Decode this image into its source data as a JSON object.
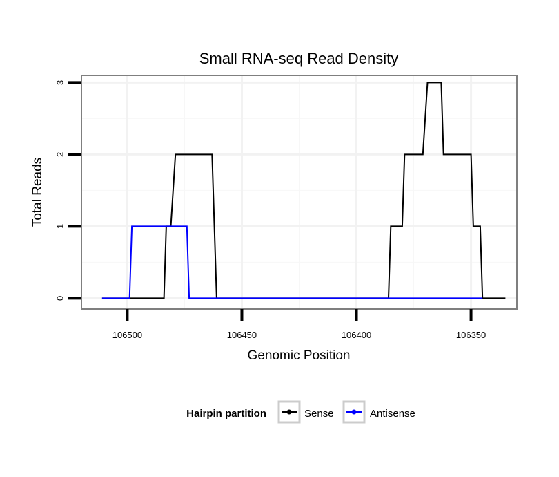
{
  "chart_data": {
    "type": "line",
    "title": "Small RNA-seq Read Density",
    "xlabel": "Genomic Position",
    "ylabel": "Total Reads",
    "x_reversed": true,
    "xlim": [
      106520,
      106330
    ],
    "ylim": [
      -0.15,
      3.1
    ],
    "x_ticks": [
      106500,
      106450,
      106400,
      106350
    ],
    "x_tick_labels": [
      "106500",
      "106450",
      "106400",
      "106350"
    ],
    "y_ticks": [
      0,
      1,
      2,
      3
    ],
    "y_tick_labels": [
      "0",
      "1",
      "2",
      "3"
    ],
    "grid": true,
    "legend": {
      "title": "Hairpin partition",
      "position": "bottom",
      "entries": [
        "Sense",
        "Antisense"
      ]
    },
    "series": [
      {
        "name": "Sense",
        "color": "#000000",
        "x": [
          106511,
          106484,
          106483,
          106481,
          106479,
          106463,
          106461,
          106386,
          106385,
          106380,
          106379,
          106371,
          106369,
          106363,
          106362,
          106350,
          106349,
          106346,
          106345,
          106335
        ],
        "y": [
          0,
          0,
          1,
          1,
          2,
          2,
          0,
          0,
          1,
          1,
          2,
          2,
          3,
          3,
          2,
          2,
          1,
          1,
          0,
          0
        ]
      },
      {
        "name": "Antisense",
        "color": "#0000ff",
        "x": [
          106511,
          106499,
          106498,
          106474,
          106473,
          106461,
          106386,
          106345
        ],
        "y": [
          0,
          0,
          1,
          1,
          0,
          0,
          0,
          0
        ]
      }
    ]
  }
}
